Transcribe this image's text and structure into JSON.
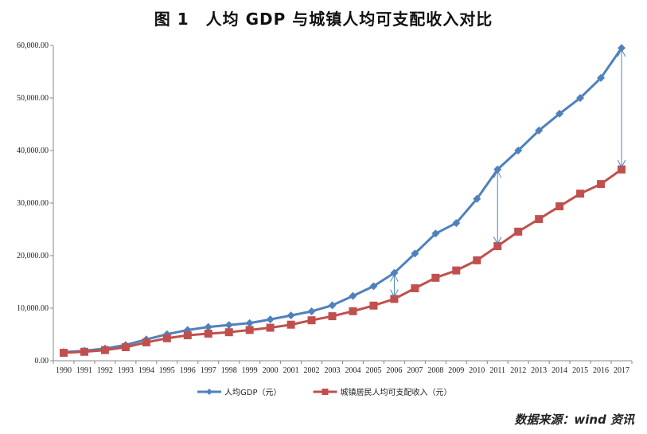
{
  "chart_data": {
    "type": "line",
    "title": "图 1　人均 GDP 与城镇人均可支配收入对比",
    "xlabel": "",
    "ylabel": "",
    "ylim": [
      0,
      60000
    ],
    "yticks": [
      "0.00",
      "10,000.00",
      "20,000.00",
      "30,000.00",
      "40,000.00",
      "50,000.00",
      "60,000.00"
    ],
    "categories": [
      "1990",
      "1991",
      "1992",
      "1993",
      "1994",
      "1995",
      "1996",
      "1997",
      "1998",
      "1999",
      "2000",
      "2001",
      "2002",
      "2003",
      "2004",
      "2005",
      "2006",
      "2007",
      "2008",
      "2009",
      "2010",
      "2011",
      "2012",
      "2013",
      "2014",
      "2015",
      "2016",
      "2017"
    ],
    "grid": false,
    "legend_placement": "bottom",
    "series": [
      {
        "name": "人均GDP（元）",
        "color": "#4f81bd",
        "marker": "diamond",
        "values": [
          1644,
          1893,
          2311,
          2998,
          4044,
          5046,
          5846,
          6420,
          6796,
          7159,
          7858,
          8622,
          9398,
          10542,
          12336,
          14185,
          16700,
          20400,
          24200,
          26200,
          30800,
          36400,
          40000,
          43800,
          47000,
          50000,
          53800,
          59500
        ]
      },
      {
        "name": "城镇居民人均可支配收入（元）",
        "color": "#c0504d",
        "marker": "square",
        "values": [
          1510,
          1701,
          2027,
          2577,
          3496,
          4283,
          4839,
          5160,
          5425,
          5854,
          6280,
          6860,
          7703,
          8472,
          9422,
          10493,
          11759,
          13786,
          15781,
          17175,
          19109,
          21810,
          24565,
          26955,
          29381,
          31790,
          33616,
          36396
        ]
      }
    ],
    "annotations": [
      {
        "type": "double-arrow",
        "x": "2006",
        "from_series": 0,
        "to_series": 1
      },
      {
        "type": "double-arrow",
        "x": "2011",
        "from_series": 0,
        "to_series": 1
      },
      {
        "type": "double-arrow",
        "x": "2017",
        "from_series": 0,
        "to_series": 1
      }
    ]
  },
  "source": "数据来源：wind 资讯"
}
